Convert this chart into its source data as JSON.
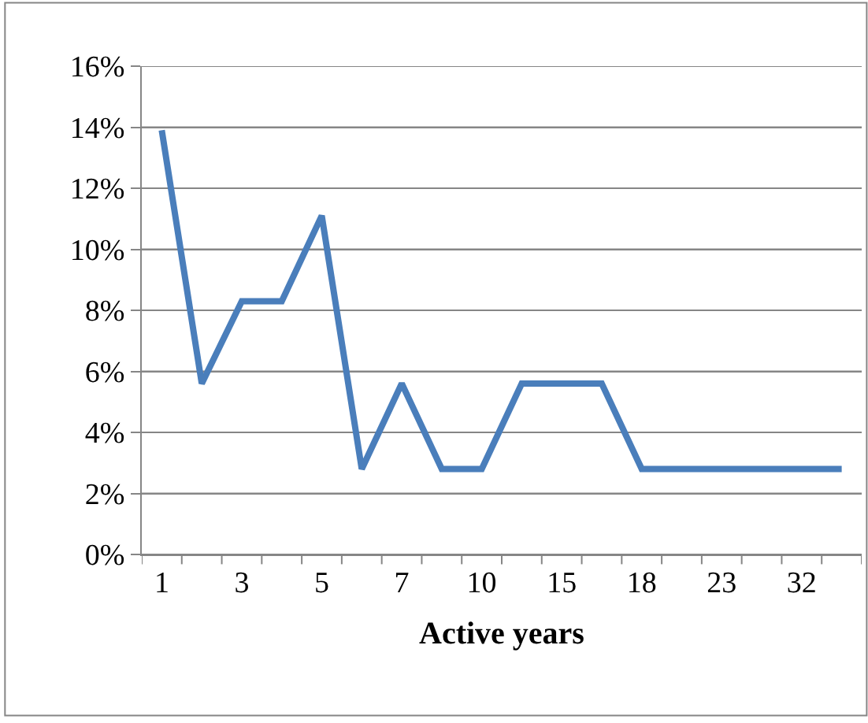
{
  "chart_data": {
    "type": "line",
    "xlabel": "Active years",
    "categories": [
      "1",
      null,
      "3",
      null,
      "5",
      null,
      "7",
      null,
      "10",
      null,
      "15",
      null,
      "18",
      null,
      "23",
      null,
      "32",
      null
    ],
    "series": [
      {
        "color": "#4a7ebb",
        "values": [
          13.9,
          5.6,
          8.3,
          8.3,
          11.1,
          2.8,
          5.6,
          2.8,
          2.8,
          5.6,
          5.6,
          5.6,
          2.8,
          2.8,
          2.8,
          2.8,
          2.8,
          2.8
        ]
      }
    ],
    "ylim": [
      0,
      16
    ],
    "yticks": [
      {
        "value": 0,
        "label": "0%"
      },
      {
        "value": 2,
        "label": "2%"
      },
      {
        "value": 4,
        "label": "4%"
      },
      {
        "value": 6,
        "label": "6%"
      },
      {
        "value": 8,
        "label": "8%"
      },
      {
        "value": 10,
        "label": "10%"
      },
      {
        "value": 12,
        "label": "12%"
      },
      {
        "value": 14,
        "label": "14%"
      },
      {
        "value": 16,
        "label": "16%"
      }
    ],
    "grid": "y",
    "marker": "none",
    "line_style": "solid"
  }
}
